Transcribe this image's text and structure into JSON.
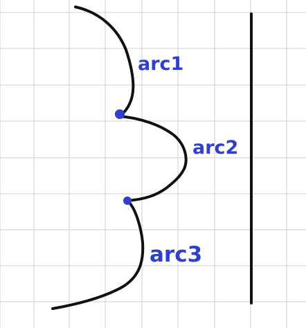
{
  "colors": {
    "background": "#ffffff",
    "grid": "#cfcfcf",
    "stroke": "#111111",
    "annotation": "#2f3fd0"
  },
  "labels": {
    "arc1": "arc1",
    "arc2": "arc2",
    "arc3": "arc3"
  }
}
